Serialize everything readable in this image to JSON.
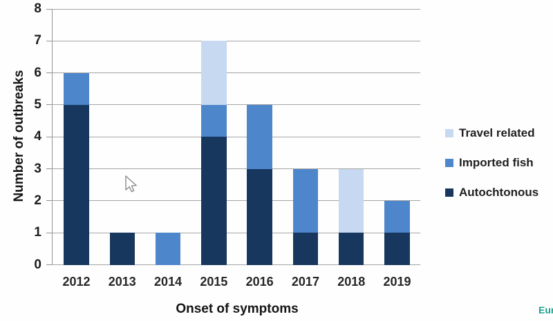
{
  "chart_data": {
    "type": "bar",
    "stacked": true,
    "title": "",
    "xlabel": "Onset of symptoms",
    "ylabel": "Number of outbreaks",
    "categories": [
      "2012",
      "2013",
      "2014",
      "2015",
      "2016",
      "2017",
      "2018",
      "2019"
    ],
    "series": [
      {
        "name": "Autochtonous",
        "color": "#17375e",
        "values": [
          5,
          1,
          0,
          4,
          3,
          1,
          1,
          1
        ]
      },
      {
        "name": "Imported fish",
        "color": "#4e86cb",
        "values": [
          1,
          0,
          1,
          1,
          2,
          2,
          0,
          1
        ]
      },
      {
        "name": "Travel related",
        "color": "#c6d9f0",
        "values": [
          0,
          0,
          0,
          2,
          0,
          0,
          2,
          0
        ]
      }
    ],
    "totals": [
      6,
      1,
      1,
      7,
      5,
      3,
      3,
      2
    ],
    "legend_order": [
      "Travel related",
      "Imported fish",
      "Autochtonous"
    ],
    "legend_position": "right",
    "ylim": [
      0,
      8
    ],
    "yticks": [
      0,
      1,
      2,
      3,
      4,
      5,
      6,
      7,
      8
    ],
    "grid": true,
    "grid_color": "#a3a3a3"
  },
  "watermark": {
    "text": "Eur",
    "color": "#1ba18c"
  },
  "icons": {
    "cursor": "mouse-pointer-arrow"
  }
}
